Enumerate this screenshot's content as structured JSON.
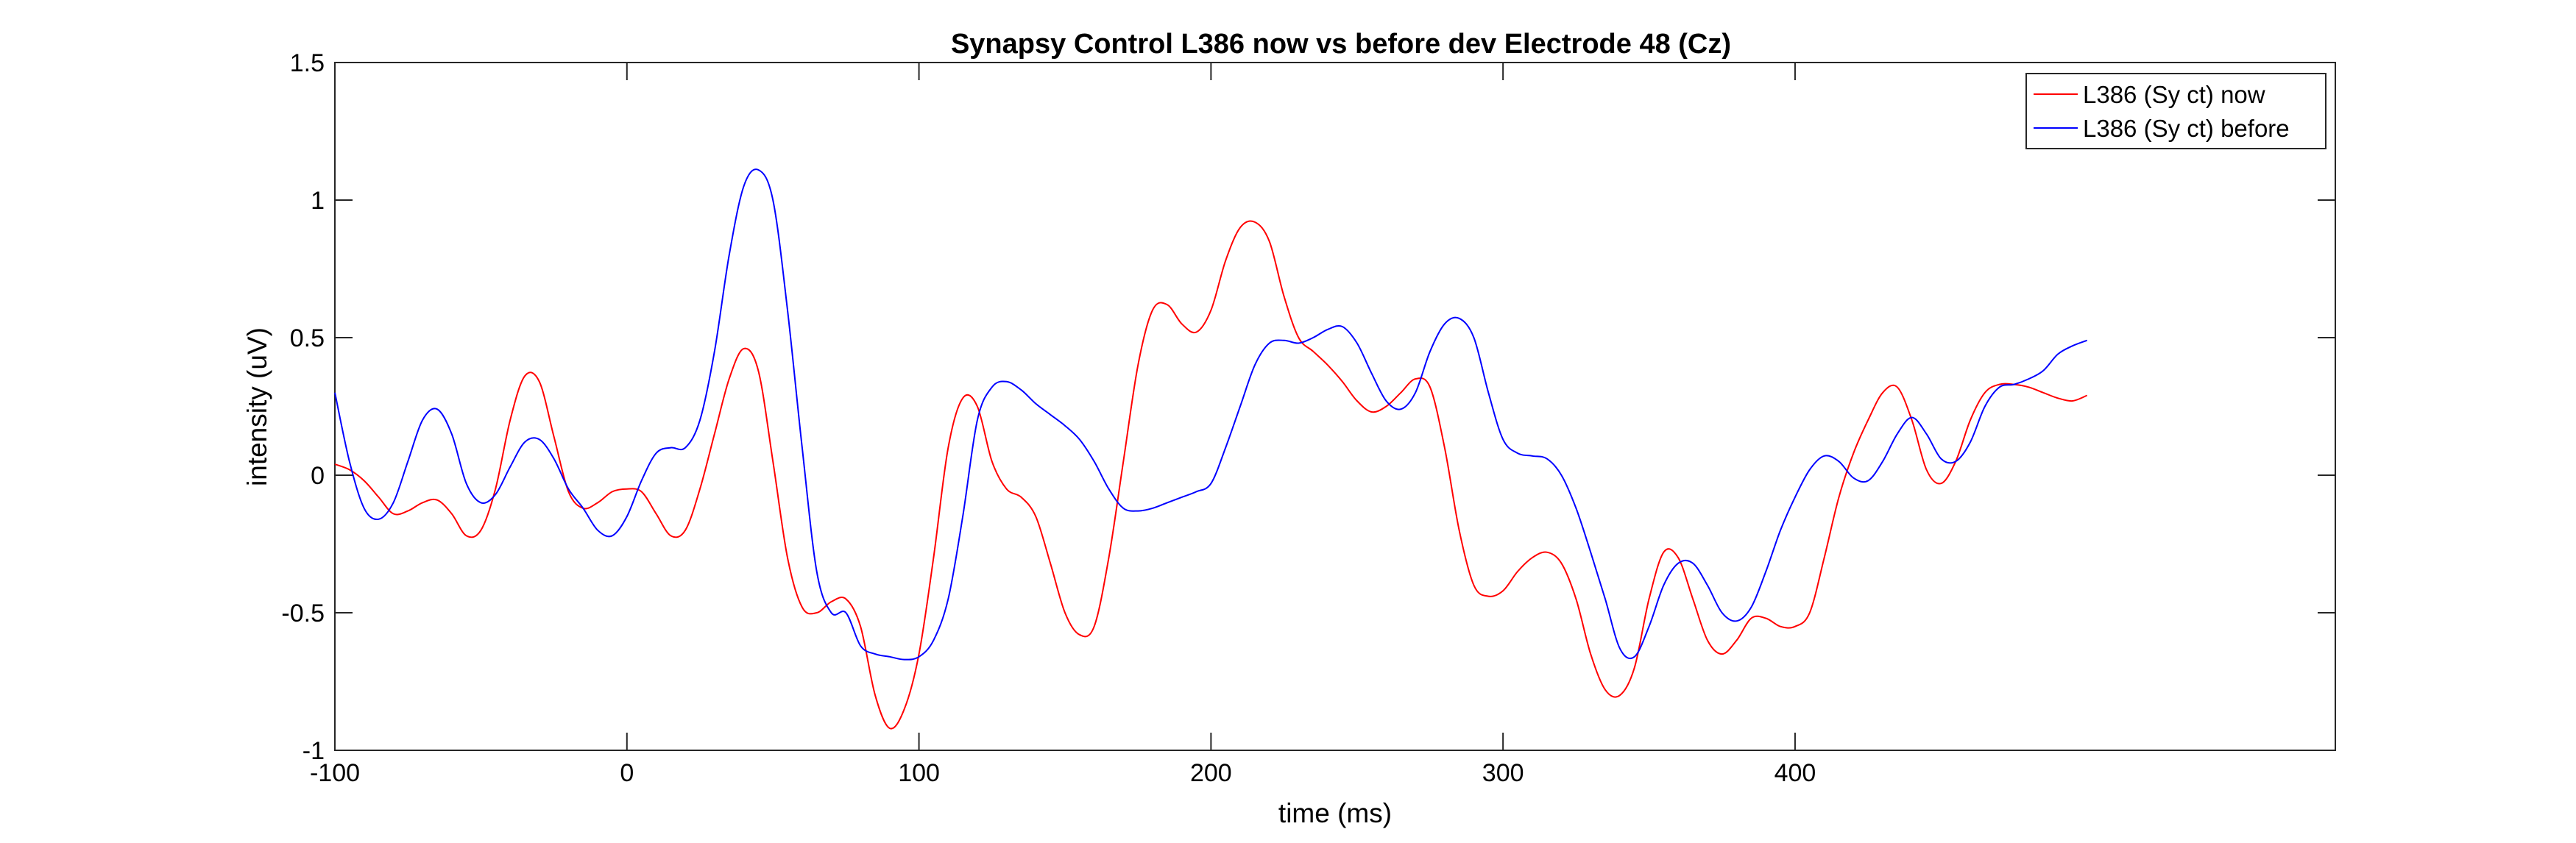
{
  "chart_data": {
    "type": "line",
    "title": "Synapsy Control L386 now vs before dev Electrode 48 (Cz)",
    "xlabel": "time (ms)",
    "ylabel": "intensity (uV)",
    "xlim": [
      -100,
      585
    ],
    "ylim": [
      -1,
      1.5
    ],
    "xticks": [
      -100,
      0,
      100,
      200,
      300,
      400
    ],
    "xtick_labels": [
      "-100",
      "0",
      "100",
      "200",
      "300",
      "400"
    ],
    "yticks": [
      -1,
      -0.5,
      0,
      0.5,
      1,
      1.5
    ],
    "ytick_labels": [
      "-1",
      "-0.5",
      "0",
      "0.5",
      "1",
      "1.5"
    ],
    "grid": false,
    "legend_position": "top-right",
    "series": [
      {
        "name": "L386 (Sy ct) now",
        "color": "#ff0000",
        "x": [
          -100,
          -95,
          -90,
          -85,
          -80,
          -75,
          -70,
          -65,
          -60,
          -55,
          -50,
          -45,
          -40,
          -35,
          -30,
          -25,
          -20,
          -15,
          -10,
          -5,
          0,
          5,
          10,
          15,
          20,
          25,
          30,
          35,
          40,
          45,
          50,
          55,
          60,
          65,
          70,
          75,
          80,
          85,
          90,
          95,
          100,
          105,
          110,
          115,
          120,
          125,
          130,
          135,
          140,
          145,
          150,
          155,
          160,
          165,
          170,
          175,
          180,
          185,
          190,
          195,
          200,
          205,
          210,
          215,
          220,
          225,
          230,
          235,
          240,
          245,
          250,
          255,
          260,
          265,
          270,
          275,
          280,
          285,
          290,
          295,
          300,
          305,
          310,
          315,
          320,
          325,
          330,
          335,
          340,
          345,
          350,
          355,
          360,
          365,
          370,
          375,
          380,
          385,
          390,
          395,
          400,
          405,
          410,
          415,
          420,
          425,
          430,
          435,
          440,
          445,
          450,
          455,
          460,
          465,
          470,
          475,
          480,
          485,
          490,
          495,
          500
        ],
        "y": [
          0.04,
          0.02,
          -0.02,
          -0.08,
          -0.14,
          -0.13,
          -0.1,
          -0.09,
          -0.14,
          -0.22,
          -0.2,
          -0.05,
          0.2,
          0.36,
          0.34,
          0.14,
          -0.06,
          -0.12,
          -0.1,
          -0.06,
          -0.05,
          -0.06,
          -0.14,
          -0.22,
          -0.2,
          -0.05,
          0.15,
          0.35,
          0.46,
          0.38,
          0.05,
          -0.3,
          -0.48,
          -0.5,
          -0.46,
          -0.45,
          -0.55,
          -0.8,
          -0.92,
          -0.85,
          -0.65,
          -0.3,
          0.1,
          0.28,
          0.25,
          0.05,
          -0.05,
          -0.08,
          -0.15,
          -0.32,
          -0.5,
          -0.58,
          -0.55,
          -0.3,
          0.05,
          0.4,
          0.6,
          0.62,
          0.55,
          0.52,
          0.6,
          0.78,
          0.9,
          0.92,
          0.85,
          0.65,
          0.5,
          0.45,
          0.4,
          0.34,
          0.27,
          0.23,
          0.25,
          0.3,
          0.35,
          0.32,
          0.1,
          -0.2,
          -0.4,
          -0.44,
          -0.42,
          -0.35,
          -0.3,
          -0.28,
          -0.32,
          -0.45,
          -0.65,
          -0.78,
          -0.8,
          -0.7,
          -0.45,
          -0.28,
          -0.3,
          -0.45,
          -0.6,
          -0.65,
          -0.6,
          -0.52,
          -0.52,
          -0.55,
          -0.55,
          -0.5,
          -0.3,
          -0.08,
          0.08,
          0.2,
          0.3,
          0.32,
          0.2,
          0.02,
          -0.03,
          0.05,
          0.2,
          0.3,
          0.33,
          0.33,
          0.32,
          0.3,
          0.28,
          0.27,
          0.29
        ]
      },
      {
        "name": "L386 (Sy ct) before",
        "color": "#0000ff",
        "x": [
          -100,
          -95,
          -90,
          -85,
          -80,
          -75,
          -70,
          -65,
          -60,
          -55,
          -50,
          -45,
          -40,
          -35,
          -30,
          -25,
          -20,
          -15,
          -10,
          -5,
          0,
          5,
          10,
          15,
          20,
          25,
          30,
          35,
          40,
          45,
          50,
          55,
          60,
          65,
          70,
          75,
          80,
          85,
          90,
          95,
          100,
          105,
          110,
          115,
          120,
          125,
          130,
          135,
          140,
          145,
          150,
          155,
          160,
          165,
          170,
          175,
          180,
          185,
          190,
          195,
          200,
          205,
          210,
          215,
          220,
          225,
          230,
          235,
          240,
          245,
          250,
          255,
          260,
          265,
          270,
          275,
          280,
          285,
          290,
          295,
          300,
          305,
          310,
          315,
          320,
          325,
          330,
          335,
          340,
          345,
          350,
          355,
          360,
          365,
          370,
          375,
          380,
          385,
          390,
          395,
          400,
          405,
          410,
          415,
          420,
          425,
          430,
          435,
          440,
          445,
          450,
          455,
          460,
          465,
          470,
          475,
          480,
          485,
          490,
          495,
          500
        ],
        "y": [
          0.3,
          0.05,
          -0.12,
          -0.16,
          -0.1,
          0.05,
          0.2,
          0.24,
          0.15,
          -0.03,
          -0.1,
          -0.07,
          0.03,
          0.12,
          0.13,
          0.06,
          -0.05,
          -0.12,
          -0.2,
          -0.22,
          -0.15,
          -0.02,
          0.08,
          0.1,
          0.1,
          0.2,
          0.45,
          0.8,
          1.05,
          1.11,
          1.0,
          0.6,
          0.1,
          -0.35,
          -0.5,
          -0.5,
          -0.62,
          -0.65,
          -0.66,
          -0.67,
          -0.66,
          -0.6,
          -0.45,
          -0.15,
          0.2,
          0.32,
          0.34,
          0.31,
          0.26,
          0.22,
          0.18,
          0.13,
          0.05,
          -0.05,
          -0.12,
          -0.13,
          -0.12,
          -0.1,
          -0.08,
          -0.06,
          -0.03,
          0.1,
          0.25,
          0.4,
          0.48,
          0.49,
          0.48,
          0.5,
          0.53,
          0.54,
          0.48,
          0.37,
          0.27,
          0.24,
          0.3,
          0.45,
          0.55,
          0.57,
          0.5,
          0.3,
          0.13,
          0.08,
          0.07,
          0.06,
          0.0,
          -0.12,
          -0.28,
          -0.45,
          -0.63,
          -0.66,
          -0.55,
          -0.4,
          -0.32,
          -0.32,
          -0.4,
          -0.5,
          -0.53,
          -0.48,
          -0.35,
          -0.2,
          -0.08,
          0.02,
          0.07,
          0.05,
          -0.01,
          -0.02,
          0.05,
          0.15,
          0.21,
          0.15,
          0.06,
          0.05,
          0.12,
          0.25,
          0.32,
          0.33,
          0.35,
          0.38,
          0.44,
          0.47,
          0.49
        ]
      }
    ]
  }
}
